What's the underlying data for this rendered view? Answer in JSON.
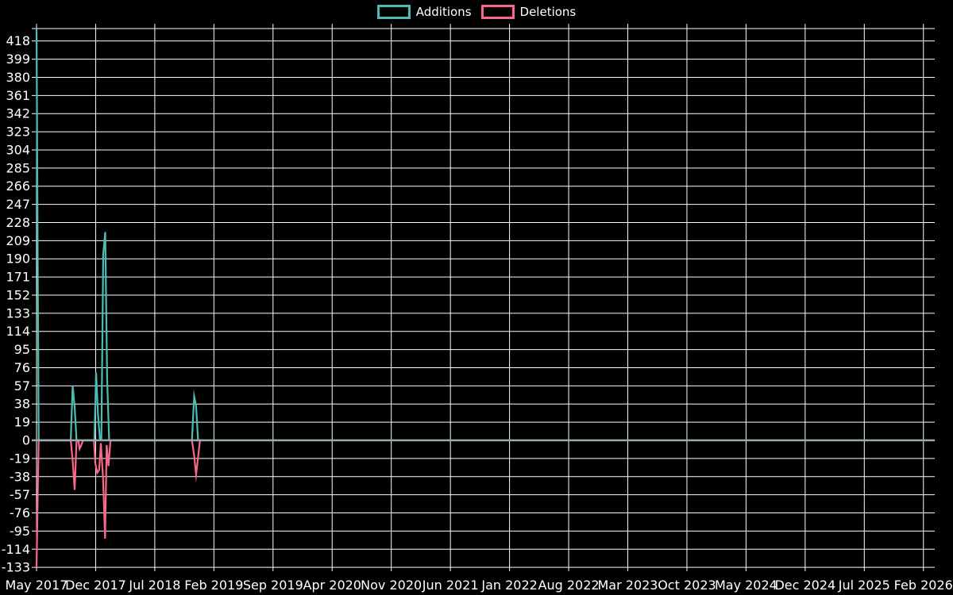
{
  "page": {
    "background": "#000000",
    "text_color": "#ffffff"
  },
  "legend": {
    "items": [
      {
        "label": "Additions",
        "color": "#4cbdb4"
      },
      {
        "label": "Deletions",
        "color": "#f8688b"
      }
    ]
  },
  "chart_data": {
    "type": "line",
    "title": "",
    "legend_position": "top-center",
    "background": "#000000",
    "grid": true,
    "grid_color": "#ffffff",
    "zero_line_color": "#98acb6",
    "x_axis": {
      "unit": "months since May 2017, weekly data points",
      "tick_labels": [
        "May 2017",
        "Dec 2017",
        "Jul 2018",
        "Feb 2019",
        "Sep 2019",
        "Apr 2020",
        "Nov 2020",
        "Jun 2021",
        "Jan 2022",
        "Aug 2022",
        "Mar 2023",
        "Oct 2023",
        "May 2024",
        "Dec 2024",
        "Jul 2025",
        "Feb 2026"
      ],
      "tick_offsets": [
        0,
        7,
        14,
        21,
        28,
        35,
        42,
        49,
        56,
        63,
        70,
        77,
        84,
        91,
        98,
        105
      ],
      "range": [
        0,
        106.34
      ]
    },
    "y_axis": {
      "tick_values": [
        418,
        399,
        380,
        361,
        342,
        323,
        304,
        285,
        266,
        247,
        228,
        209,
        190,
        171,
        152,
        133,
        114,
        95,
        76,
        57,
        38,
        19,
        0,
        -19,
        -38,
        -57,
        -76,
        -95,
        -114,
        -133
      ],
      "range": [
        -133,
        431
      ]
    },
    "series": [
      {
        "name": "Additions",
        "color": "#4cbdb4",
        "points": [
          [
            0,
            431
          ],
          [
            0.25,
            0
          ],
          [
            4.05,
            0
          ],
          [
            4.28,
            57
          ],
          [
            4.51,
            35
          ],
          [
            4.74,
            0
          ],
          [
            6.85,
            0
          ],
          [
            7.05,
            71
          ],
          [
            7.28,
            27
          ],
          [
            7.51,
            0
          ],
          [
            7.67,
            0
          ],
          [
            7.9,
            195
          ],
          [
            8.13,
            218
          ],
          [
            8.36,
            65
          ],
          [
            8.59,
            0
          ],
          [
            18.4,
            0
          ],
          [
            18.66,
            46
          ],
          [
            18.89,
            36
          ],
          [
            19.12,
            0
          ],
          [
            19.5,
            0
          ]
        ]
      },
      {
        "name": "Deletions",
        "color": "#f8688b",
        "points": [
          [
            0,
            -133
          ],
          [
            0.25,
            0
          ],
          [
            4.05,
            0
          ],
          [
            4.28,
            -21
          ],
          [
            4.51,
            -52
          ],
          [
            4.74,
            0
          ],
          [
            4.95,
            0
          ],
          [
            5.1,
            -9
          ],
          [
            5.3,
            -5
          ],
          [
            5.5,
            0
          ],
          [
            6.8,
            0
          ],
          [
            6.96,
            -24
          ],
          [
            7.19,
            -34
          ],
          [
            7.42,
            -31
          ],
          [
            7.62,
            -3
          ],
          [
            7.88,
            -40
          ],
          [
            8.11,
            -103
          ],
          [
            8.3,
            -5
          ],
          [
            8.52,
            -27
          ],
          [
            8.75,
            0
          ],
          [
            18.4,
            0
          ],
          [
            18.66,
            -16
          ],
          [
            18.89,
            -36
          ],
          [
            19.12,
            -18
          ],
          [
            19.35,
            0
          ],
          [
            19.5,
            0
          ]
        ]
      }
    ]
  }
}
